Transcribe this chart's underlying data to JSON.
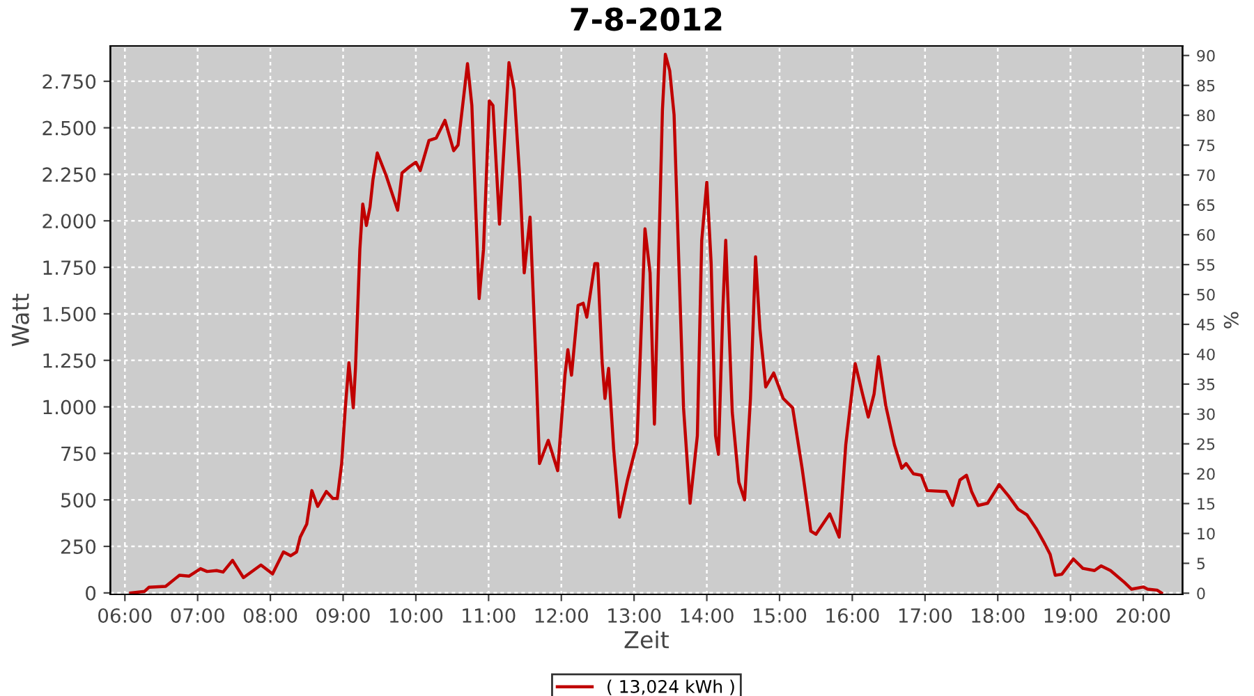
{
  "chart_data": {
    "type": "line",
    "title": "7-8-2012",
    "xlabel": "Zeit",
    "ylabel": "Watt",
    "y2label": "%",
    "series": [
      {
        "name": "( 13,024 kWh )",
        "color": "#c00000",
        "x": [
          6.08,
          6.27,
          6.33,
          6.56,
          6.75,
          6.88,
          7.04,
          7.13,
          7.26,
          7.35,
          7.48,
          7.63,
          7.87,
          8.03,
          8.18,
          8.28,
          8.36,
          8.41,
          8.5,
          8.57,
          8.65,
          8.77,
          8.86,
          8.92,
          8.98,
          9.03,
          9.08,
          9.14,
          9.17,
          9.23,
          9.27,
          9.32,
          9.37,
          9.41,
          9.47,
          9.59,
          9.75,
          9.81,
          9.91,
          10.0,
          10.06,
          10.18,
          10.28,
          10.4,
          10.52,
          10.58,
          10.71,
          10.77,
          10.87,
          10.93,
          11.01,
          11.06,
          11.15,
          11.28,
          11.35,
          11.43,
          11.49,
          11.57,
          11.65,
          11.7,
          11.82,
          11.95,
          12.05,
          12.09,
          12.14,
          12.23,
          12.3,
          12.35,
          12.46,
          12.5,
          12.56,
          12.6,
          12.65,
          12.72,
          12.8,
          12.91,
          13.04,
          13.15,
          13.22,
          13.28,
          13.39,
          13.43,
          13.49,
          13.55,
          13.68,
          13.77,
          13.87,
          13.93,
          14.0,
          14.06,
          14.12,
          14.16,
          14.22,
          14.26,
          14.35,
          14.44,
          14.52,
          14.6,
          14.67,
          14.73,
          14.81,
          14.92,
          15.05,
          15.18,
          15.31,
          15.43,
          15.5,
          15.69,
          15.82,
          15.91,
          16.04,
          16.14,
          16.22,
          16.3,
          16.36,
          16.46,
          16.58,
          16.68,
          16.74,
          16.84,
          16.95,
          17.03,
          17.29,
          17.38,
          17.48,
          17.57,
          17.64,
          17.73,
          17.86,
          18.02,
          18.15,
          18.28,
          18.4,
          18.53,
          18.63,
          18.72,
          18.79,
          18.88,
          19.04,
          19.17,
          19.33,
          19.42,
          19.55,
          19.74,
          19.84,
          20.0,
          20.06,
          20.19,
          20.25
        ],
        "values": [
          0,
          8,
          30,
          35,
          95,
          90,
          130,
          115,
          120,
          112,
          175,
          82,
          150,
          102,
          220,
          200,
          220,
          300,
          370,
          550,
          465,
          545,
          507,
          507,
          695,
          995,
          1237,
          995,
          1207,
          1845,
          2090,
          1975,
          2075,
          2220,
          2365,
          2245,
          2057,
          2257,
          2290,
          2315,
          2270,
          2432,
          2445,
          2540,
          2377,
          2407,
          2845,
          2620,
          1582,
          1845,
          2645,
          2620,
          1982,
          2850,
          2707,
          2220,
          1720,
          2020,
          1245,
          695,
          820,
          657,
          1170,
          1307,
          1170,
          1545,
          1557,
          1482,
          1770,
          1770,
          1245,
          1045,
          1207,
          770,
          407,
          607,
          807,
          1957,
          1720,
          907,
          2595,
          2895,
          2807,
          2570,
          995,
          482,
          845,
          1895,
          2207,
          1770,
          845,
          745,
          1520,
          1895,
          970,
          595,
          500,
          1045,
          1807,
          1420,
          1107,
          1182,
          1045,
          995,
          670,
          332,
          315,
          425,
          300,
          795,
          1232,
          1070,
          945,
          1070,
          1270,
          1007,
          795,
          670,
          695,
          640,
          632,
          550,
          545,
          470,
          607,
          632,
          545,
          470,
          482,
          582,
          520,
          450,
          420,
          345,
          275,
          207,
          95,
          100,
          182,
          132,
          120,
          145,
          120,
          57,
          20,
          32,
          20,
          15,
          0
        ]
      }
    ],
    "xlim": [
      5.8,
      20.54
    ],
    "ylim": [
      -8,
      2940
    ],
    "y2lim": [
      -0.2,
      91.6
    ],
    "xticks": [
      {
        "value": 6,
        "label": "06:00"
      },
      {
        "value": 7,
        "label": "07:00"
      },
      {
        "value": 8,
        "label": "08:00"
      },
      {
        "value": 9,
        "label": "09:00"
      },
      {
        "value": 10,
        "label": "10:00"
      },
      {
        "value": 11,
        "label": "11:00"
      },
      {
        "value": 12,
        "label": "12:00"
      },
      {
        "value": 13,
        "label": "13:00"
      },
      {
        "value": 14,
        "label": "14:00"
      },
      {
        "value": 15,
        "label": "15:00"
      },
      {
        "value": 16,
        "label": "16:00"
      },
      {
        "value": 17,
        "label": "17:00"
      },
      {
        "value": 18,
        "label": "18:00"
      },
      {
        "value": 19,
        "label": "19:00"
      },
      {
        "value": 20,
        "label": "20:00"
      }
    ],
    "yticks": [
      0,
      250,
      500,
      750,
      {
        "value": 1000,
        "label": "1.000"
      },
      {
        "value": 1250,
        "label": "1.250"
      },
      {
        "value": 1500,
        "label": "1.500"
      },
      {
        "value": 1750,
        "label": "1.750"
      },
      {
        "value": 2000,
        "label": "2.000"
      },
      {
        "value": 2250,
        "label": "2.250"
      },
      {
        "value": 2500,
        "label": "2.500"
      },
      {
        "value": 2750,
        "label": "2.750"
      }
    ],
    "y2ticks": [
      0,
      5,
      10,
      15,
      20,
      25,
      30,
      35,
      40,
      45,
      50,
      55,
      60,
      65,
      70,
      75,
      80,
      85,
      90
    ],
    "grid": true,
    "legend": "bottom",
    "line_style": "solid",
    "marker": "none"
  }
}
